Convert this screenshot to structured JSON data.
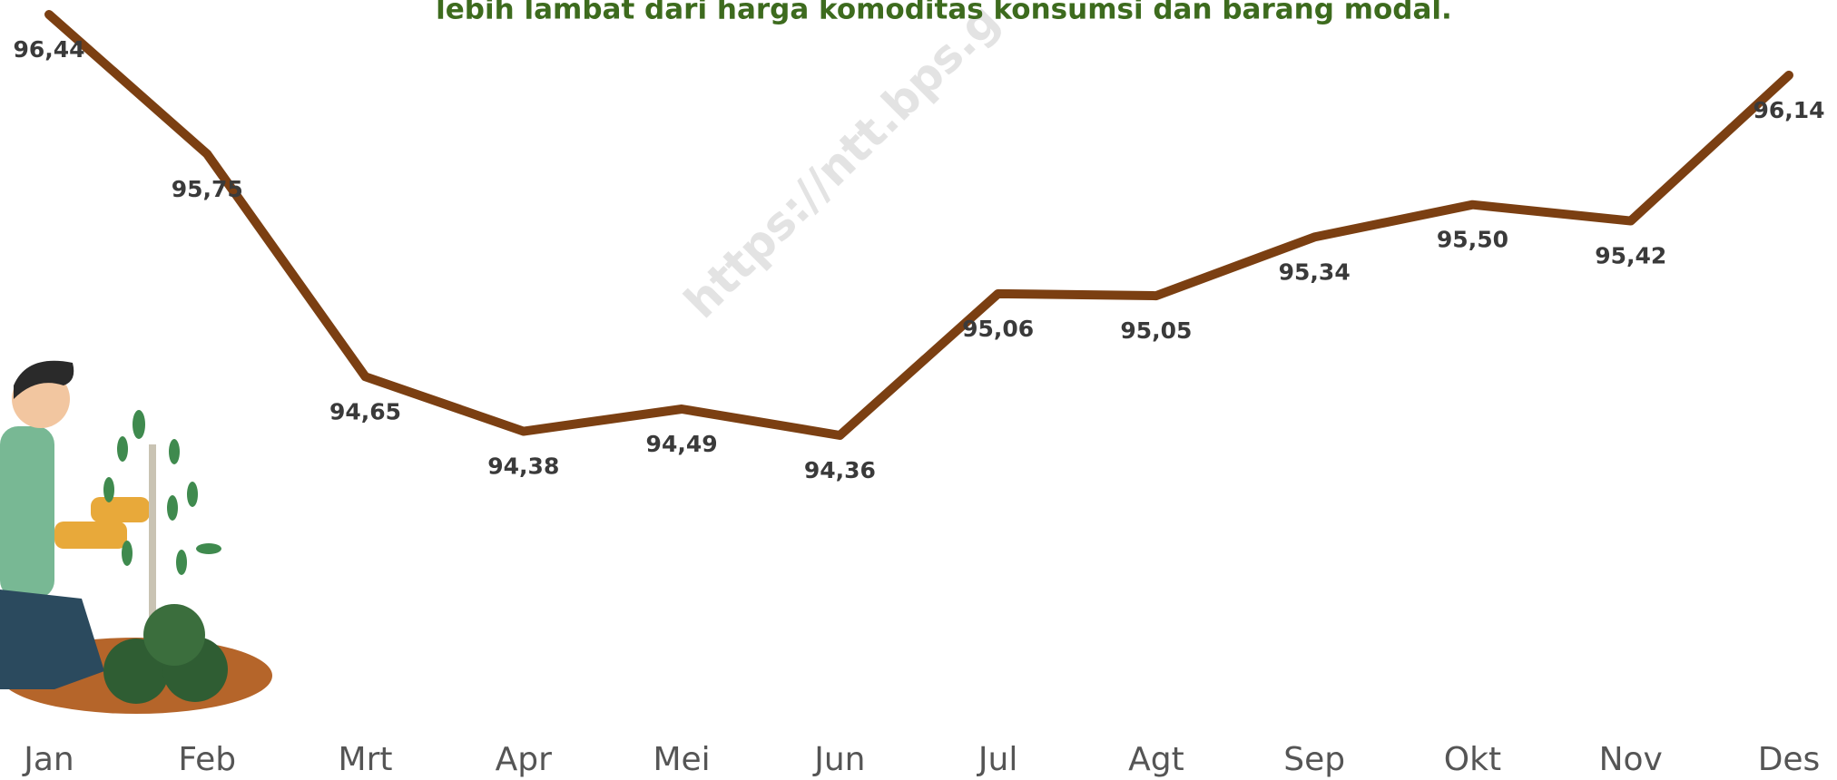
{
  "chart_data": {
    "type": "line",
    "title": "lebih lambat dari harga komoditas konsumsi dan barang modal.",
    "watermark": "https://ntt.bps.g",
    "categories": [
      "Jan",
      "Feb",
      "Mrt",
      "Apr",
      "Mei",
      "Jun",
      "Jul",
      "Agt",
      "Sep",
      "Okt",
      "Nov",
      "Des"
    ],
    "series": [
      {
        "color": "#7b3f12",
        "values": [
          96.44,
          95.75,
          94.65,
          94.38,
          94.49,
          94.36,
          95.06,
          95.05,
          95.34,
          95.5,
          95.42,
          96.14
        ],
        "value_labels": [
          "96,44",
          "95,75",
          "94,65",
          "94,38",
          "94,49",
          "94,36",
          "95,06",
          "95,05",
          "95,34",
          "95,50",
          "95,42",
          "96,14"
        ]
      }
    ]
  }
}
